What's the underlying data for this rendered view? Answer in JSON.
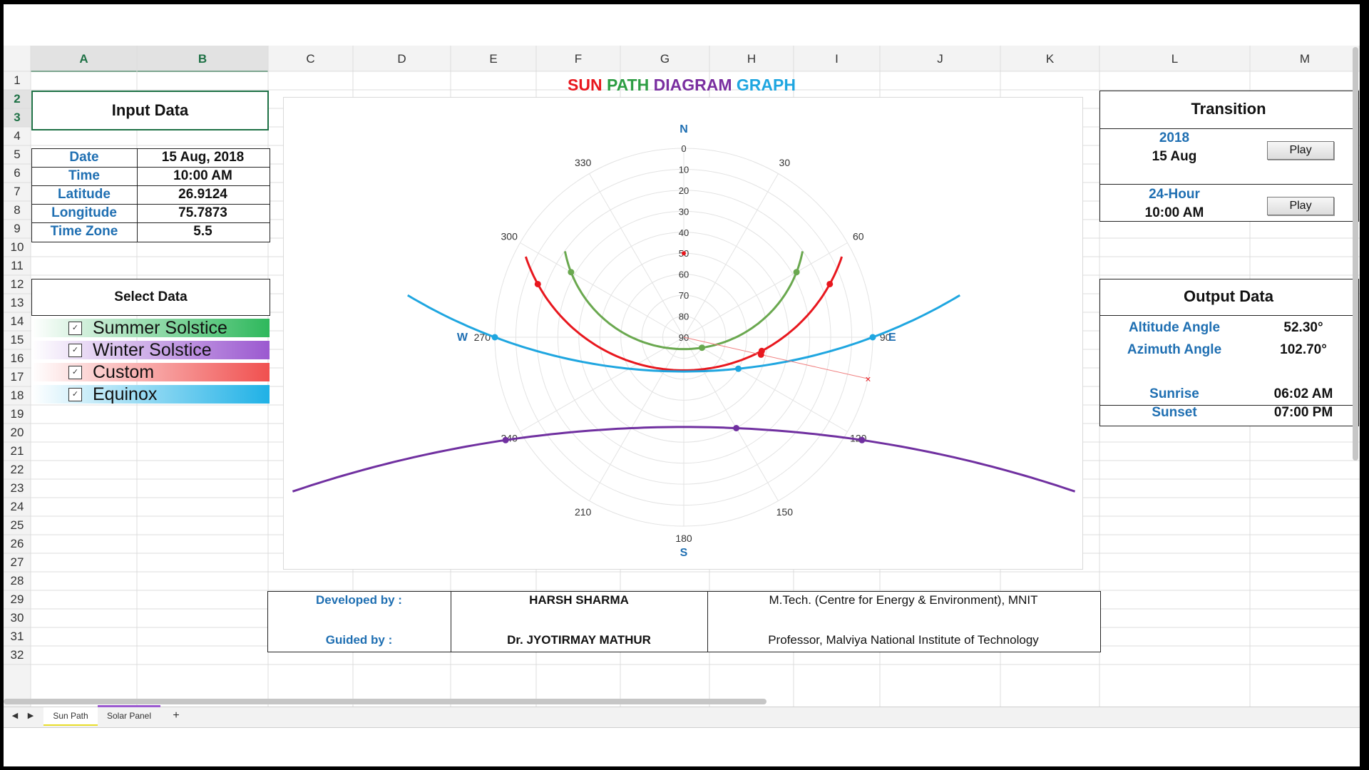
{
  "columns": [
    "A",
    "B",
    "C",
    "D",
    "E",
    "F",
    "G",
    "H",
    "I",
    "J",
    "K",
    "L",
    "M"
  ],
  "rows": [
    "1",
    "2",
    "3",
    "4",
    "5",
    "6",
    "7",
    "8",
    "9",
    "10",
    "11",
    "12",
    "13",
    "14",
    "15",
    "16",
    "17",
    "18",
    "19",
    "20",
    "21",
    "22",
    "23",
    "24",
    "25",
    "26",
    "27",
    "28",
    "29",
    "30",
    "31",
    "32"
  ],
  "input": {
    "title": "Input Data",
    "fields": [
      {
        "label": "Date",
        "value": "15 Aug, 2018"
      },
      {
        "label": "Time",
        "value": "10:00 AM"
      },
      {
        "label": "Latitude",
        "value": "26.9124"
      },
      {
        "label": "Longitude",
        "value": "75.7873"
      },
      {
        "label": "Time Zone",
        "value": "5.5"
      }
    ]
  },
  "select": {
    "title": "Select Data",
    "items": [
      {
        "label": "Summer Solstice",
        "checked": "✓",
        "color": "#2eb85c"
      },
      {
        "label": "Winter Solstice",
        "checked": "✓",
        "color": "#9b59d0"
      },
      {
        "label": "Custom",
        "checked": "✓",
        "color": "#f0504f"
      },
      {
        "label": "Equinox",
        "checked": "✓",
        "color": "#1fb1e6"
      }
    ]
  },
  "chart_title": {
    "parts": [
      {
        "text": "SUN ",
        "color": "#e8171e"
      },
      {
        "text": "PATH ",
        "color": "#2e9e44"
      },
      {
        "text": "DIAGRAM ",
        "color": "#7a2fa0"
      },
      {
        "text": "GRAPH",
        "color": "#1fa6e0"
      }
    ]
  },
  "chart_data": {
    "type": "polar",
    "radial_ticks": [
      "0",
      "10",
      "20",
      "30",
      "40",
      "50",
      "60",
      "70",
      "80",
      "90"
    ],
    "angle_ticks": [
      "0",
      "30",
      "60",
      "90",
      "120",
      "150",
      "180",
      "210",
      "240",
      "270",
      "300",
      "330"
    ],
    "compass": {
      "N": "N",
      "S": "S",
      "E": "E",
      "W": "W"
    },
    "series": [
      {
        "color": "#6aa84f",
        "points": [
          [
            300,
            28
          ],
          [
            60,
            28
          ],
          [
            120,
            80
          ]
        ]
      },
      {
        "color": "#e8171e",
        "points": [
          [
            290,
            16
          ],
          [
            70,
            16
          ],
          [
            100,
            52.3
          ]
        ]
      },
      {
        "color": "#1fa6e0",
        "points": [
          [
            270,
            0
          ],
          [
            90,
            0
          ],
          [
            120,
            60
          ]
        ]
      },
      {
        "color": "#7030a0",
        "points": [
          [
            240,
            -8
          ],
          [
            120,
            -8
          ],
          [
            150,
            40
          ]
        ]
      }
    ],
    "current_azimuth": 102.7,
    "current_altitude": 52.3
  },
  "transition": {
    "title": "Transition",
    "year": "2018",
    "date": "15 Aug",
    "hour_label": "24-Hour",
    "time": "10:00 AM",
    "play": "Play"
  },
  "output": {
    "title": "Output Data",
    "altitude_label": "Altitude Angle",
    "altitude_value": "52.30°",
    "azimuth_label": "Azimuth Angle",
    "azimuth_value": "102.70°",
    "sunrise_label": "Sunrise",
    "sunrise_value": "06:02 AM",
    "sunset_label": "Sunset",
    "sunset_value": "07:00 PM"
  },
  "credits": {
    "developed_label": "Developed by :",
    "developed_name": "HARSH SHARMA",
    "developed_desc": "M.Tech. (Centre for Energy & Environment), MNIT",
    "guided_label": "Guided by :",
    "guided_name": "Dr. JYOTIRMAY  MATHUR",
    "guided_desc": "Professor, Malviya National Institute of Technology"
  },
  "sheets": {
    "active": "Sun Path",
    "other": "Solar Panel",
    "add": "+"
  }
}
